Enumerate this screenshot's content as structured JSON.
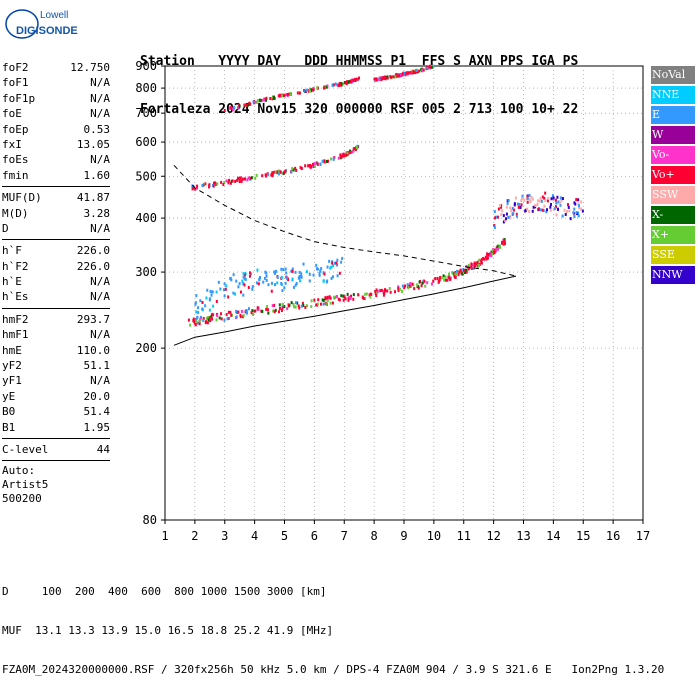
{
  "logo": {
    "line1": "Lowell",
    "line2": "DIGISONDE"
  },
  "header": {
    "row1": "Station   YYYY DAY   DDD HHMMSS P1  FFS S AXN PPS IGA PS",
    "row2": "Fortaleza 2024 Nov15 320 000000 RSF 005 2 713 100 10+ 22"
  },
  "params": {
    "group1": [
      {
        "name": "foF2",
        "value": "12.750"
      },
      {
        "name": "foF1",
        "value": "N/A"
      },
      {
        "name": "foF1p",
        "value": "N/A"
      },
      {
        "name": "foE",
        "value": "N/A"
      },
      {
        "name": "foEp",
        "value": "0.53"
      },
      {
        "name": "fxI",
        "value": "13.05"
      },
      {
        "name": "foEs",
        "value": "N/A"
      },
      {
        "name": "fmin",
        "value": "1.60"
      }
    ],
    "group2": [
      {
        "name": "MUF(D)",
        "value": "41.87"
      },
      {
        "name": "M(D)",
        "value": "3.28"
      },
      {
        "name": "D",
        "value": "N/A"
      }
    ],
    "group3": [
      {
        "name": "h`F",
        "value": "226.0"
      },
      {
        "name": "h`F2",
        "value": "226.0"
      },
      {
        "name": "h`E",
        "value": "N/A"
      },
      {
        "name": "h`Es",
        "value": "N/A"
      }
    ],
    "group4": [
      {
        "name": "hmF2",
        "value": "293.7"
      },
      {
        "name": "hmF1",
        "value": "N/A"
      },
      {
        "name": "hmE",
        "value": "110.0"
      },
      {
        "name": "yF2",
        "value": "51.1"
      },
      {
        "name": "yF1",
        "value": "N/A"
      },
      {
        "name": "yE",
        "value": "20.0"
      },
      {
        "name": "B0",
        "value": "51.4"
      },
      {
        "name": "B1",
        "value": "1.95"
      }
    ],
    "group5": [
      {
        "name": "C-level",
        "value": "44"
      }
    ],
    "auto": [
      "Auto:",
      "Artist5",
      "500200"
    ]
  },
  "legend": [
    {
      "label": "NoVal",
      "color": "#808080"
    },
    {
      "label": "NNE",
      "color": "#00ccff"
    },
    {
      "label": "E",
      "color": "#3399ff"
    },
    {
      "label": "W",
      "color": "#990099"
    },
    {
      "label": "Vo-",
      "color": "#ff33cc"
    },
    {
      "label": "Vo+",
      "color": "#ff0033"
    },
    {
      "label": "SSW",
      "color": "#ffaaaa"
    },
    {
      "label": "X-",
      "color": "#006600"
    },
    {
      "label": "X+",
      "color": "#66cc33"
    },
    {
      "label": "SSE",
      "color": "#cccc00"
    },
    {
      "label": "NNW",
      "color": "#3300cc"
    }
  ],
  "footer": {
    "line1": "D     100  200  400  600  800 1000 1500 3000 [km]",
    "line2": "MUF  13.1 13.3 13.9 15.0 16.5 18.8 25.2 41.9 [MHz]",
    "line3": "FZA0M_2024320000000.RSF / 320fx256h 50 kHz 5.0 km / DPS-4 FZA0M 904 / 3.9 S 321.6 E   Ion2Png 1.3.20"
  },
  "chart_data": {
    "type": "scatter",
    "title": "",
    "xlabel": "",
    "ylabel": "",
    "xlim": [
      1,
      17
    ],
    "ylim": [
      80,
      900
    ],
    "y_scale": "log",
    "x_ticks": [
      "1",
      "2",
      "3",
      "4",
      "5",
      "6",
      "7",
      "8",
      "9",
      "10",
      "11",
      "12",
      "13",
      "14",
      "15",
      "16",
      "17"
    ],
    "y_ticks": [
      80,
      200,
      300,
      400,
      500,
      600,
      700,
      800,
      900
    ],
    "grid": "dotted",
    "traces": [
      {
        "name": "F2 first hop",
        "freq": [
          1.8,
          2.5,
          3.5,
          4.5,
          5.5,
          6.5,
          7.5,
          8.5,
          9.5,
          10.5,
          11.0,
          11.5,
          12.0,
          12.4
        ],
        "height": [
          228,
          234,
          240,
          246,
          252,
          258,
          264,
          271,
          280,
          292,
          302,
          315,
          335,
          355
        ]
      },
      {
        "name": "F2 second hop",
        "freq": [
          1.9,
          3,
          4,
          5,
          6,
          7,
          7.5
        ],
        "height": [
          470,
          483,
          498,
          512,
          530,
          560,
          585
        ]
      },
      {
        "name": "F2 third hop",
        "freq": [
          3,
          4,
          5,
          6,
          7,
          7.5
        ],
        "height": [
          710,
          742,
          770,
          795,
          820,
          840
        ]
      },
      {
        "name": "F2 third hop upper",
        "freq": [
          8,
          8.5,
          9,
          9.5,
          10
        ],
        "height": [
          835,
          848,
          862,
          878,
          900
        ]
      },
      {
        "name": "E-ray scatter",
        "freq": [
          2,
          3,
          4,
          5,
          6,
          7
        ],
        "height": [
          250,
          275,
          285,
          290,
          300,
          305
        ]
      },
      {
        "name": "Spread F",
        "freq": [
          12,
          12.5,
          13,
          13.5,
          14,
          14.5,
          15
        ],
        "height": [
          400,
          420,
          430,
          440,
          430,
          420,
          425
        ]
      }
    ],
    "profile_solid": {
      "freq": [
        1.3,
        2,
        3,
        4,
        5,
        6,
        7,
        8,
        9,
        10,
        11,
        12,
        12.75
      ],
      "height": [
        203,
        212,
        218,
        225,
        231,
        237,
        244,
        251,
        259,
        267,
        276,
        286,
        293.7
      ]
    },
    "profile_dashed": {
      "freq": [
        1.3,
        2,
        3,
        4,
        5,
        6,
        7,
        8,
        9,
        10,
        11,
        12,
        12.75
      ],
      "height": [
        530,
        470,
        428,
        395,
        372,
        353,
        342,
        334,
        327,
        318,
        309,
        302,
        293.7
      ]
    }
  }
}
